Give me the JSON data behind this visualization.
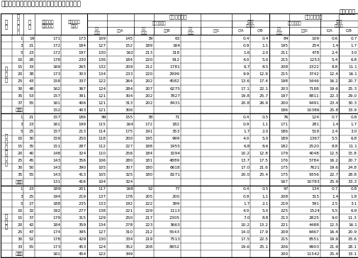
{
  "title": "第９表－⑱　モデル退職金（退職一時金のみ）",
  "unit": "単位：千円",
  "sections": [
    {
      "label": "高\n校\n卒",
      "rows": [
        [
          1,
          19,
          171,
          173,
          109,
          145,
          39,
          63,
          0.4,
          0.4,
          84,
          109,
          0.6,
          0.7
        ],
        [
          3,
          21,
          172,
          184,
          127,
          152,
          189,
          164,
          0.9,
          1.1,
          195,
          254,
          1.4,
          1.7
        ],
        [
          5,
          23,
          172,
          197,
          130,
          162,
          213,
          318,
          1.6,
          2.0,
          211,
          478,
          2.4,
          3.0
        ],
        [
          10,
          28,
          178,
          230,
          136,
          184,
          220,
          912,
          4.0,
          5.0,
          215,
          1253,
          5.4,
          6.8
        ],
        [
          15,
          33,
          169,
          265,
          132,
          209,
          212,
          1781,
          6.7,
          8.5,
          208,
          2322,
          8.8,
          11.1
        ],
        [
          20,
          38,
          173,
          303,
          134,
          233,
          220,
          2999,
          9.9,
          12.9,
          215,
          3742,
          12.4,
          16.1
        ],
        [
          25,
          43,
          158,
          337,
          122,
          264,
          202,
          4582,
          13.6,
          17.4,
          198,
          5446,
          16.2,
          20.7
        ],
        [
          30,
          48,
          162,
          367,
          124,
          284,
          207,
          6275,
          17.1,
          22.1,
          203,
          7188,
          19.6,
          25.3
        ],
        [
          35,
          53,
          157,
          391,
          121,
          304,
          202,
          7827,
          19.8,
          25.7,
          197,
          8811,
          22.3,
          29.0
        ],
        [
          37,
          55,
          161,
          406,
          121,
          313,
          202,
          8431,
          20.8,
          26.9,
          200,
          9491,
          23.4,
          30.3
        ],
        [
          "定年",
          "",
          152,
          403,
          121,
          306,
          "",
          "",
          "",
          "",
          186,
          10386,
          25.8,
          33.9
        ]
      ]
    },
    {
      "label": "高\n専\n・\n短\n大\n卒",
      "rows": [
        [
          1,
          21,
          157,
          186,
          99,
          155,
          38,
          71,
          0.4,
          0.5,
          76,
          124,
          0.7,
          0.8
        ],
        [
          3,
          23,
          161,
          199,
          115,
          164,
          172,
          182,
          0.9,
          1.1,
          171,
          281,
          1.4,
          1.7
        ],
        [
          5,
          25,
          157,
          213,
          114,
          175,
          191,
          353,
          1.7,
          2.0,
          186,
          519,
          2.4,
          3.0
        ],
        [
          10,
          30,
          159,
          250,
          118,
          200,
          195,
          999,
          4.0,
          5.0,
          189,
          1367,
          5.5,
          6.8
        ],
        [
          15,
          35,
          151,
          287,
          112,
          227,
          188,
          1955,
          6.8,
          8.6,
          182,
          2520,
          8.8,
          11.1
        ],
        [
          20,
          40,
          148,
          324,
          110,
          256,
          184,
          3294,
          10.2,
          12.8,
          179,
          4048,
          12.5,
          15.8
        ],
        [
          25,
          45,
          143,
          356,
          106,
          280,
          181,
          4889,
          13.7,
          17.5,
          176,
          5784,
          16.2,
          20.7
        ],
        [
          30,
          50,
          143,
          390,
          105,
          307,
          180,
          6618,
          17.0,
          21.6,
          175,
          7621,
          19.6,
          24.8
        ],
        [
          35,
          55,
          143,
          413,
          105,
          325,
          180,
          8271,
          20.0,
          25.4,
          175,
          9356,
          22.7,
          28.8
        ],
        [
          "定年",
          "",
          131,
          416,
          104,
          324,
          "",
          "",
          "",
          "",
          167,
          10783,
          25.9,
          33.3
        ]
      ]
    },
    {
      "label": "大\n学\n卒",
      "rows": [
        [
          1,
          23,
          189,
          201,
          117,
          168,
          52,
          77,
          0.4,
          0.5,
          97,
          134,
          0.7,
          0.8
        ],
        [
          3,
          25,
          194,
          219,
          137,
          178,
          205,
          200,
          0.9,
          1.1,
          208,
          315,
          1.4,
          1.8
        ],
        [
          5,
          27,
          188,
          235,
          133,
          192,
          222,
          399,
          1.7,
          2.1,
          219,
          591,
          2.5,
          3.1
        ],
        [
          10,
          32,
          192,
          277,
          138,
          221,
          229,
          1113,
          4.0,
          5.0,
          225,
          1524,
          5.5,
          6.9
        ],
        [
          15,
          37,
          179,
          315,
          129,
          250,
          217,
          2305,
          7.0,
          8.8,
          213,
          2825,
          9.0,
          11.3
        ],
        [
          20,
          42,
          184,
          359,
          134,
          278,
          223,
          3663,
          10.2,
          13.2,
          221,
          4488,
          12.5,
          16.1
        ],
        [
          25,
          47,
          174,
          395,
          127,
          310,
          212,
          5543,
          14.0,
          17.9,
          209,
          6467,
          16.4,
          20.9
        ],
        [
          30,
          52,
          178,
          429,
          130,
          334,
          219,
          7513,
          17.5,
          22.5,
          215,
          8551,
          19.9,
          25.6
        ],
        [
          33,
          55,
          173,
          453,
          124,
          352,
          208,
          8852,
          19.6,
          25.1,
          206,
          9903,
          21.9,
          28.1
        ],
        [
          "定年",
          "",
          161,
          454,
          122,
          349,
          "",
          "",
          "",
          "",
          200,
          11542,
          25.4,
          33.1
        ]
      ]
    }
  ]
}
